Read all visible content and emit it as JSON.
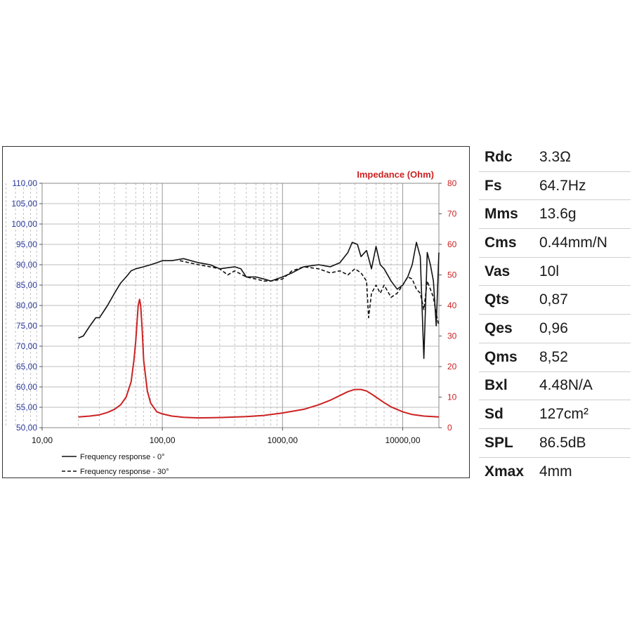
{
  "chart_data": {
    "type": "line",
    "x_scale": "log",
    "xlim": [
      10,
      20000
    ],
    "ylim_left": [
      50,
      110
    ],
    "ylim_right": [
      0,
      80
    ],
    "grid": true,
    "legend_position": "bottom-left",
    "right_axis_title": "Impedance (Ohm)",
    "x_tick_labels": [
      "10,00",
      "100,00",
      "1000,00",
      "10000,00"
    ],
    "x_tick_values": [
      10,
      100,
      1000,
      10000
    ],
    "y_left_tick_labels": [
      "50,00",
      "55,00",
      "60,00",
      "65,00",
      "70,00",
      "75,00",
      "80,00",
      "85,00",
      "90,00",
      "95,00",
      "100,00",
      "105,00",
      "110,00"
    ],
    "y_left_tick_values": [
      50,
      55,
      60,
      65,
      70,
      75,
      80,
      85,
      90,
      95,
      100,
      105,
      110
    ],
    "y_right_tick_labels": [
      "0",
      "10",
      "20",
      "30",
      "40",
      "50",
      "60",
      "70",
      "80"
    ],
    "y_right_tick_values": [
      0,
      10,
      20,
      30,
      40,
      50,
      60,
      70,
      80
    ],
    "colors": {
      "left_axis": "#2b3a9a",
      "right_axis": "#cc2222",
      "impedance": "#cc2222",
      "response": "#111111"
    },
    "series": [
      {
        "name": "Frequency response - 0°",
        "axis": "left",
        "style": "solid",
        "x": [
          20,
          22,
          25,
          28,
          30,
          35,
          40,
          45,
          50,
          55,
          60,
          70,
          80,
          90,
          100,
          120,
          150,
          200,
          250,
          300,
          400,
          450,
          500,
          600,
          700,
          800,
          1000,
          1200,
          1500,
          2000,
          2500,
          3000,
          3500,
          3800,
          4200,
          4500,
          5000,
          5500,
          6000,
          6500,
          7000,
          8000,
          9000,
          10000,
          11000,
          12000,
          13000,
          14000,
          15000,
          16000,
          17000,
          18000,
          19000,
          20000
        ],
        "y": [
          72,
          72.5,
          75,
          77,
          77,
          80,
          83,
          85.5,
          87,
          88.5,
          89,
          89.5,
          90,
          90.5,
          91,
          91,
          91.5,
          90.5,
          90,
          89,
          89.5,
          89,
          87,
          87,
          86.5,
          86,
          87,
          88,
          89.5,
          90,
          89.5,
          90.5,
          93,
          95.5,
          95,
          92,
          93.5,
          89,
          94.5,
          90,
          89,
          86,
          84,
          85,
          87,
          90,
          95.5,
          92,
          67,
          93,
          90,
          86,
          75,
          93
        ]
      },
      {
        "name": "Frequency response - 30°",
        "axis": "left",
        "style": "dashed",
        "x": [
          140,
          200,
          250,
          300,
          350,
          400,
          500,
          600,
          700,
          800,
          1000,
          1200,
          1500,
          2000,
          2500,
          3000,
          3500,
          4000,
          4500,
          5000,
          5200,
          5500,
          6000,
          6500,
          7000,
          8000,
          9000,
          10000,
          11000,
          12000,
          13000,
          14000,
          15000,
          16000,
          17000,
          18000,
          19000,
          20000
        ],
        "y": [
          91,
          90,
          89.5,
          89,
          87.5,
          88.5,
          87,
          86.5,
          86,
          86,
          86.5,
          88.5,
          89.5,
          89,
          88,
          88.5,
          87.5,
          89,
          88,
          86,
          77,
          83,
          85,
          83,
          85,
          82,
          83,
          85,
          87,
          86.5,
          84,
          83,
          79,
          86,
          84,
          82,
          78,
          75
        ]
      },
      {
        "name": "Impedance",
        "axis": "right",
        "style": "solid",
        "x": [
          20,
          25,
          30,
          35,
          40,
          45,
          50,
          55,
          58,
          60,
          62,
          63,
          64.7,
          66,
          68,
          70,
          75,
          80,
          90,
          100,
          120,
          150,
          200,
          300,
          500,
          700,
          1000,
          1500,
          2000,
          2500,
          3000,
          3500,
          4000,
          4500,
          5000,
          5500,
          6000,
          7000,
          8000,
          10000,
          12000,
          15000,
          20000
        ],
        "y": [
          3.5,
          3.8,
          4.2,
          5,
          6,
          7.5,
          10,
          15,
          22,
          28,
          36,
          40,
          42,
          40,
          32,
          22,
          12,
          8,
          5.2,
          4.5,
          3.8,
          3.4,
          3.2,
          3.3,
          3.6,
          4,
          4.8,
          6,
          7.5,
          9,
          10.5,
          11.8,
          12.5,
          12.5,
          12,
          11,
          10,
          8.2,
          6.8,
          5.2,
          4.3,
          3.8,
          3.5
        ]
      }
    ]
  },
  "specs": [
    {
      "name": "Rdc",
      "value": "3.3Ω"
    },
    {
      "name": "Fs",
      "value": "64.7Hz"
    },
    {
      "name": "Mms",
      "value": "13.6g"
    },
    {
      "name": "Cms",
      "value": "0.44mm/N"
    },
    {
      "name": "Vas",
      "value": "10l"
    },
    {
      "name": "Qts",
      "value": "0,87"
    },
    {
      "name": "Qes",
      "value": "0,96"
    },
    {
      "name": "Qms",
      "value": "8,52"
    },
    {
      "name": "Bxl",
      "value": "4.48N/A"
    },
    {
      "name": "Sd",
      "value": "127cm²"
    },
    {
      "name": "SPL",
      "value": "86.5dB"
    },
    {
      "name": "Xmax",
      "value": "4mm"
    }
  ]
}
